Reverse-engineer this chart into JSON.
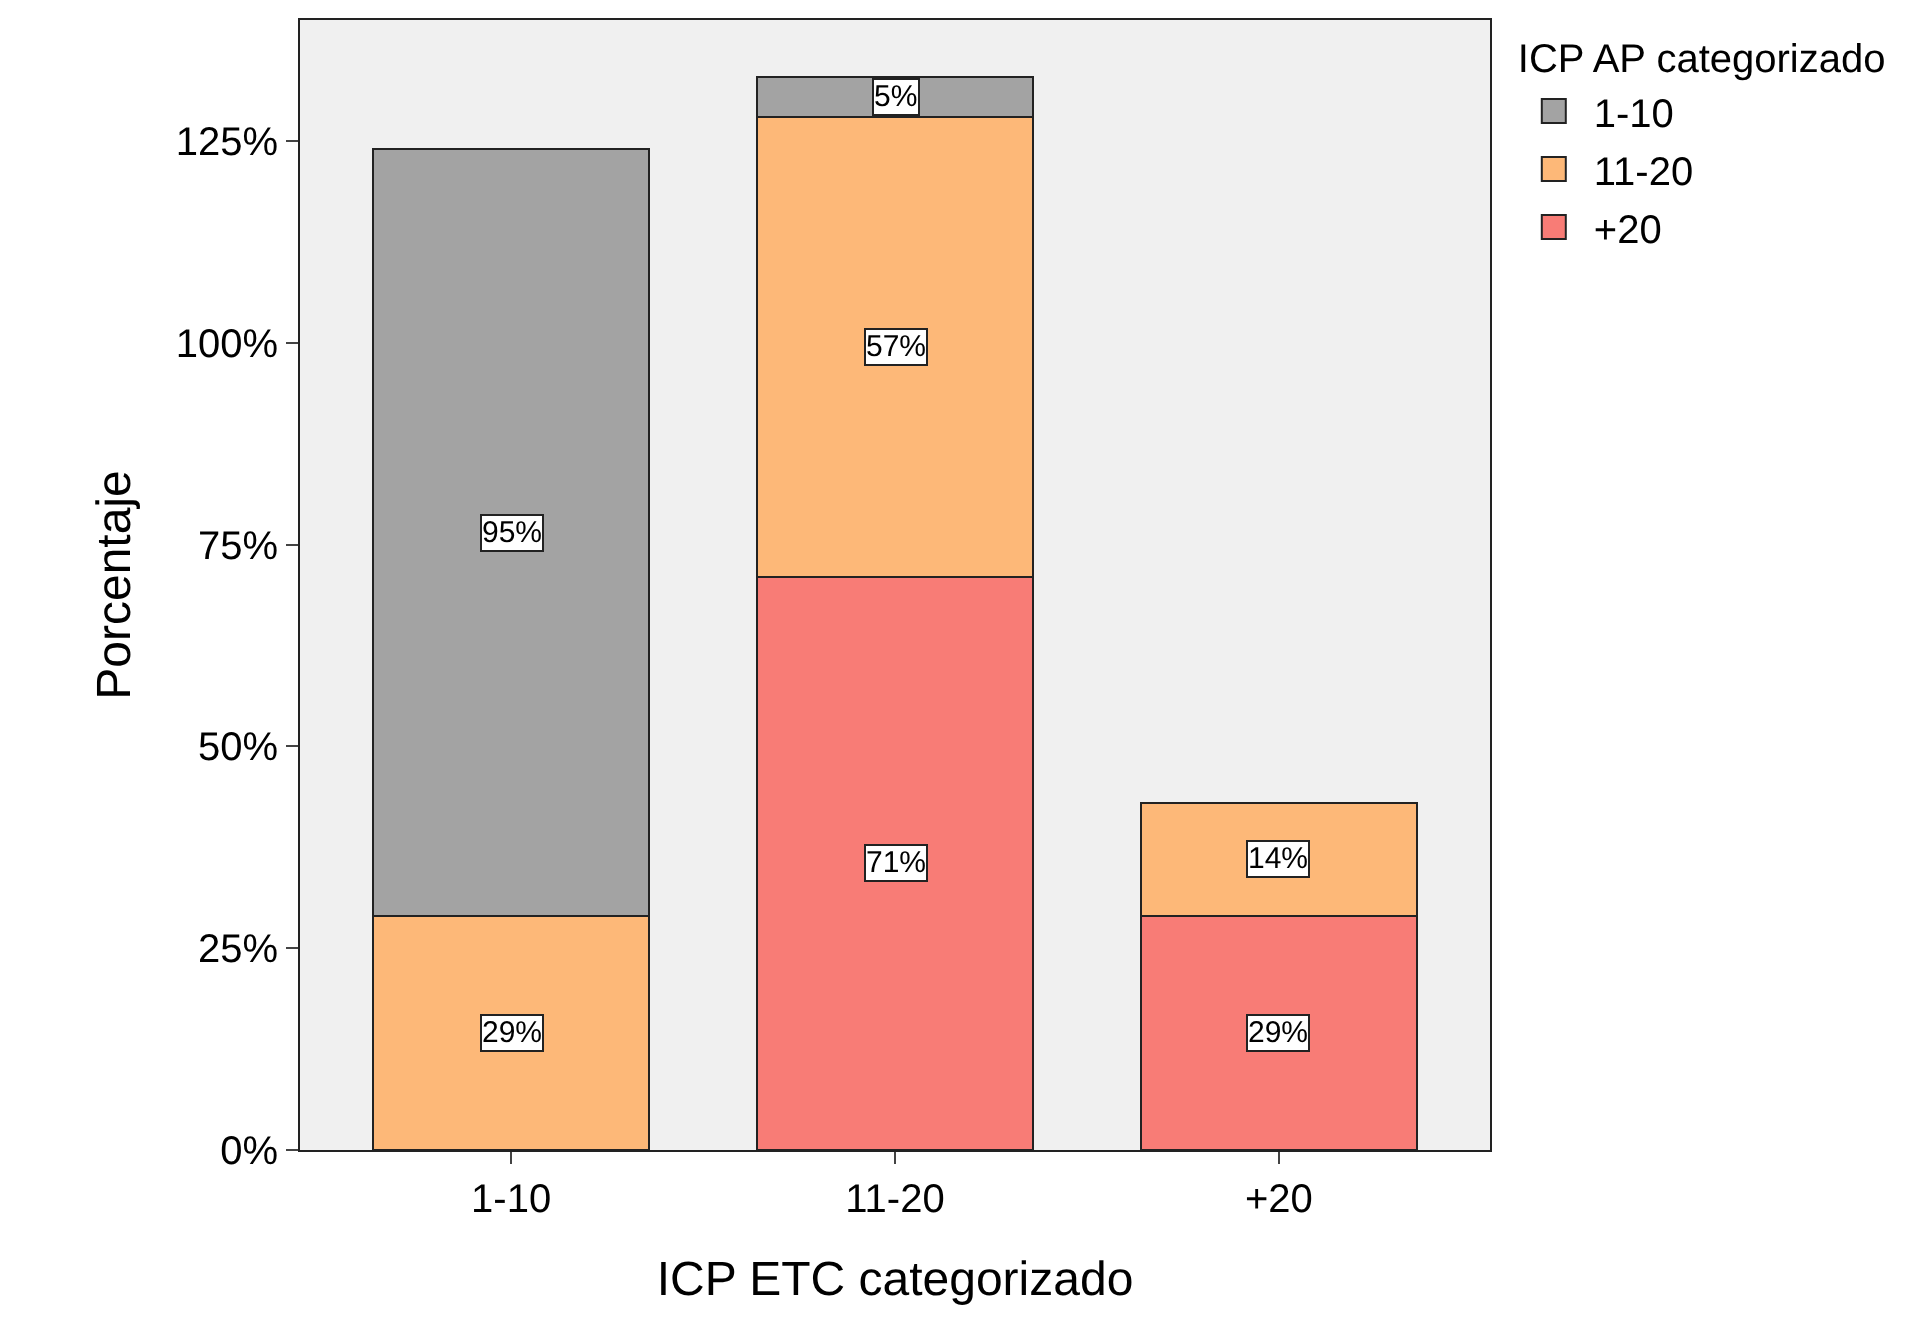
{
  "chart_data": {
    "type": "bar",
    "stacked": true,
    "xlabel": "ICP ETC categorizado",
    "ylabel": "Porcentaje",
    "legend_title": "ICP AP categorizado",
    "legend": "top right",
    "grid": false,
    "categories": [
      "1-10",
      "11-20",
      "+20"
    ],
    "series": [
      {
        "name": "+20",
        "color": "#f87c76",
        "values": [
          null,
          71,
          29
        ],
        "value_labels": [
          null,
          "71%",
          "29%"
        ]
      },
      {
        "name": "11-20",
        "color": "#fdb878",
        "values": [
          29,
          57,
          14
        ],
        "value_labels": [
          "29%",
          "57%",
          "14%"
        ]
      },
      {
        "name": "1-10",
        "color": "#a3a3a3",
        "values": [
          95,
          5,
          null
        ],
        "value_labels": [
          "95%",
          "5%",
          null
        ]
      }
    ],
    "ylim": [
      0,
      140
    ],
    "yticks": [
      {
        "value": 0,
        "label": "0%"
      },
      {
        "value": 25,
        "label": "25%"
      },
      {
        "value": 50,
        "label": "50%"
      },
      {
        "value": 75,
        "label": "75%"
      },
      {
        "value": 100,
        "label": "100%"
      },
      {
        "value": 125,
        "label": "125%"
      }
    ]
  }
}
